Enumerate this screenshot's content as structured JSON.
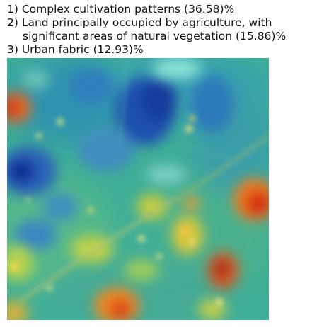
{
  "caption": {
    "line1": "1) Complex cultivation patterns (36.58)%",
    "line2": "2) Land principally occupied by agriculture, with",
    "line3": "significant areas of natural vegetation (15.86)%",
    "line4": "3) Urban fabric (12.93)%"
  }
}
